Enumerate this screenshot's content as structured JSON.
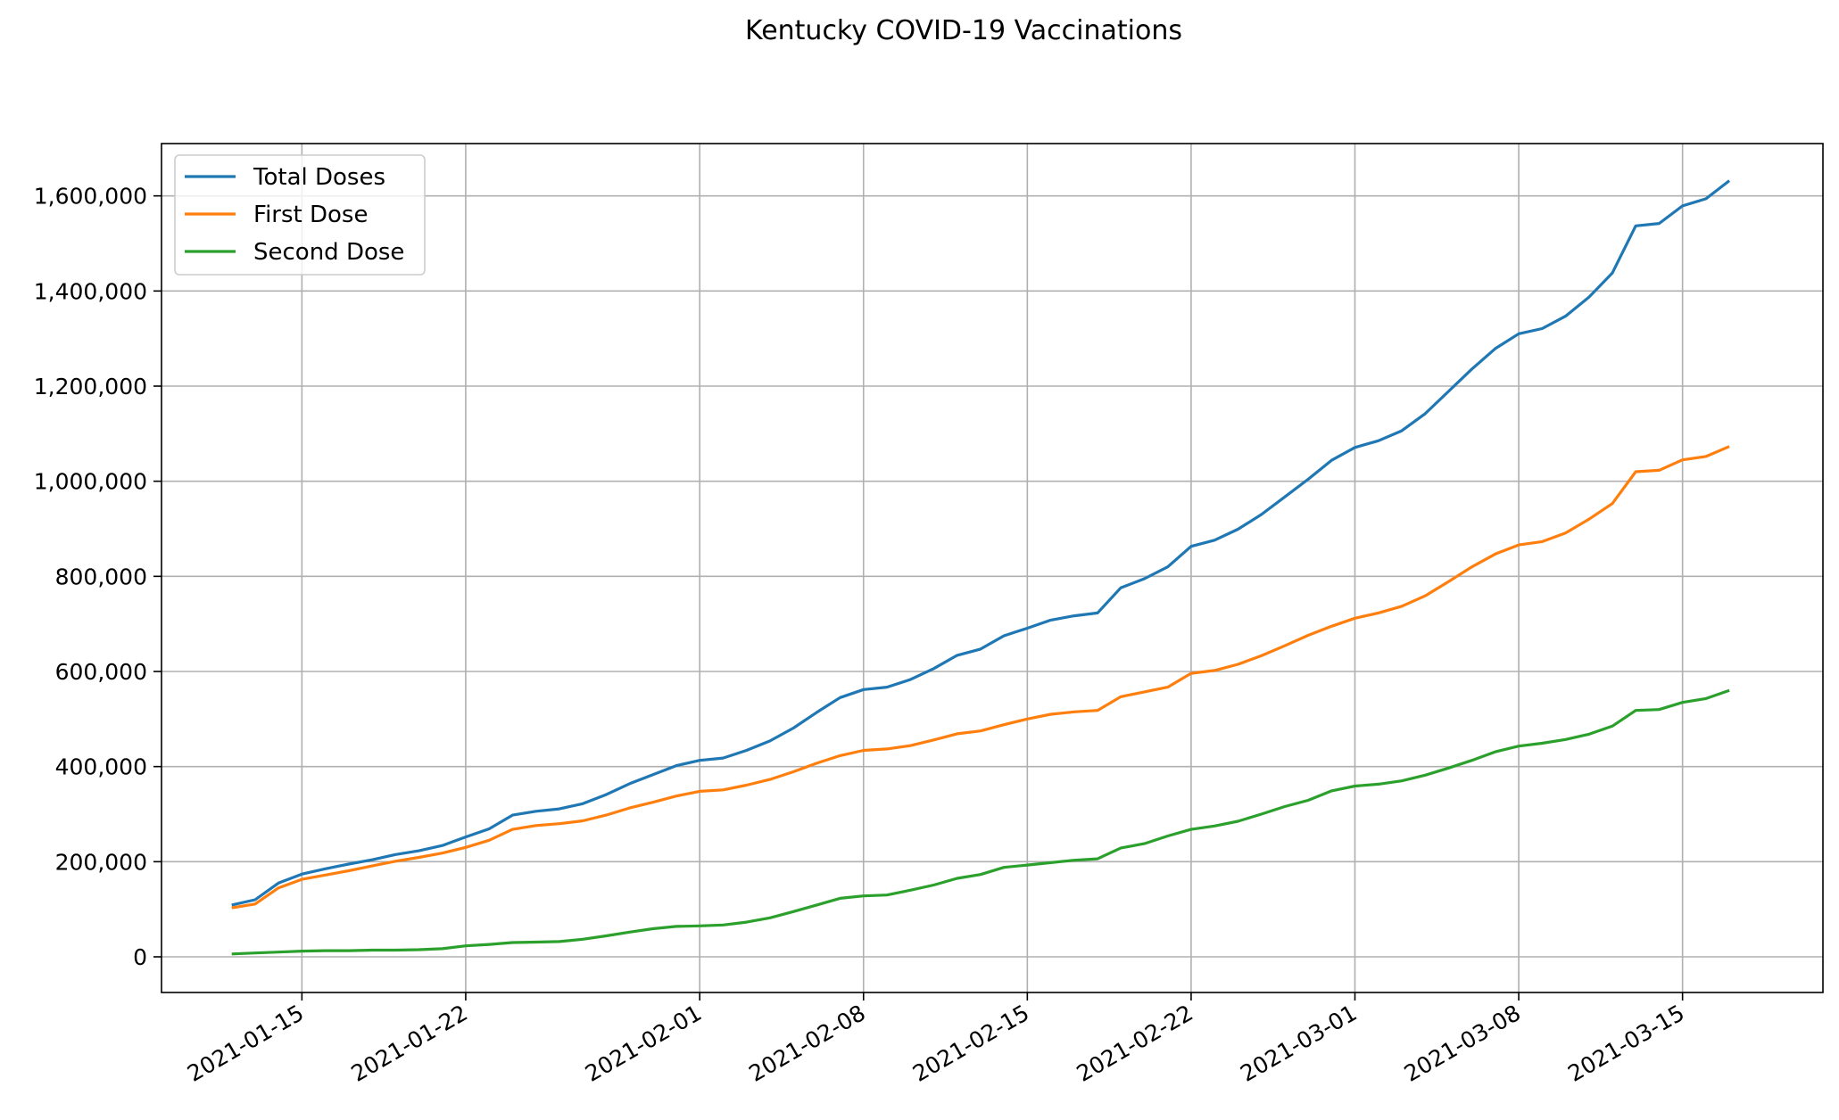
{
  "chart_data": {
    "type": "line",
    "title": "Kentucky COVID-19 Vaccinations",
    "xlabel": "",
    "ylabel": "",
    "x_start": "2021-01-12",
    "x_end": "2021-03-18",
    "xlim": [
      "2021-01-09",
      "2021-03-21"
    ],
    "ylim": [
      -75000,
      1710000
    ],
    "x_ticks": [
      "2021-01-15",
      "2021-01-22",
      "2021-02-01",
      "2021-02-08",
      "2021-02-15",
      "2021-02-22",
      "2021-03-01",
      "2021-03-08",
      "2021-03-15"
    ],
    "y_ticks": [
      0,
      200000,
      400000,
      600000,
      800000,
      1000000,
      1200000,
      1400000,
      1600000
    ],
    "y_tick_labels": [
      "0",
      "200,000",
      "400,000",
      "600,000",
      "800,000",
      "1,000,000",
      "1,200,000",
      "1,400,000",
      "1,600,000"
    ],
    "grid": true,
    "legend_position": "top-left",
    "series": [
      {
        "name": "Total Doses",
        "color": "#1f77b4",
        "values": [
          109000,
          120000,
          155000,
          174000,
          185000,
          195000,
          204000,
          215000,
          223000,
          234000,
          252000,
          269000,
          298000,
          306000,
          311000,
          322000,
          341000,
          364000,
          383000,
          402000,
          413000,
          418000,
          434000,
          454000,
          481000,
          514000,
          545000,
          562000,
          567000,
          583000,
          606000,
          634000,
          647000,
          675000,
          691000,
          708000,
          717000,
          723000,
          776000,
          795000,
          820000,
          863000,
          876000,
          899000,
          930000,
          967000,
          1004000,
          1044000,
          1071000,
          1085000,
          1106000,
          1142000,
          1189000,
          1236000,
          1279000,
          1310000,
          1321000,
          1347000,
          1387000,
          1438000,
          1537000,
          1542000,
          1579000,
          1594000,
          1632000
        ]
      },
      {
        "name": "First Dose",
        "color": "#ff7f0e",
        "values": [
          103000,
          111000,
          145000,
          163000,
          172000,
          181000,
          191000,
          201000,
          209000,
          218000,
          230000,
          245000,
          268000,
          276000,
          280000,
          286000,
          298000,
          313000,
          325000,
          338000,
          348000,
          351000,
          361000,
          373000,
          389000,
          407000,
          423000,
          434000,
          437000,
          444000,
          456000,
          469000,
          475000,
          488000,
          500000,
          510000,
          515000,
          518000,
          547000,
          557000,
          567000,
          596000,
          602000,
          615000,
          633000,
          654000,
          676000,
          695000,
          712000,
          723000,
          737000,
          759000,
          789000,
          820000,
          847000,
          866000,
          873000,
          891000,
          920000,
          953000,
          1020000,
          1023000,
          1045000,
          1052000,
          1073000
        ]
      },
      {
        "name": "Second Dose",
        "color": "#2ca02c",
        "values": [
          6000,
          8000,
          10000,
          12000,
          13000,
          13000,
          14000,
          14000,
          15000,
          17000,
          23000,
          26000,
          30000,
          31000,
          32000,
          37000,
          44000,
          52000,
          59000,
          64000,
          65000,
          67000,
          73000,
          82000,
          95000,
          109000,
          123000,
          128000,
          130000,
          140000,
          151000,
          165000,
          173000,
          188000,
          193000,
          198000,
          203000,
          206000,
          229000,
          238000,
          254000,
          268000,
          275000,
          285000,
          300000,
          316000,
          329000,
          349000,
          359000,
          363000,
          370000,
          382000,
          397000,
          413000,
          431000,
          443000,
          449000,
          457000,
          468000,
          485000,
          518000,
          520000,
          535000,
          543000,
          560000
        ]
      }
    ]
  }
}
